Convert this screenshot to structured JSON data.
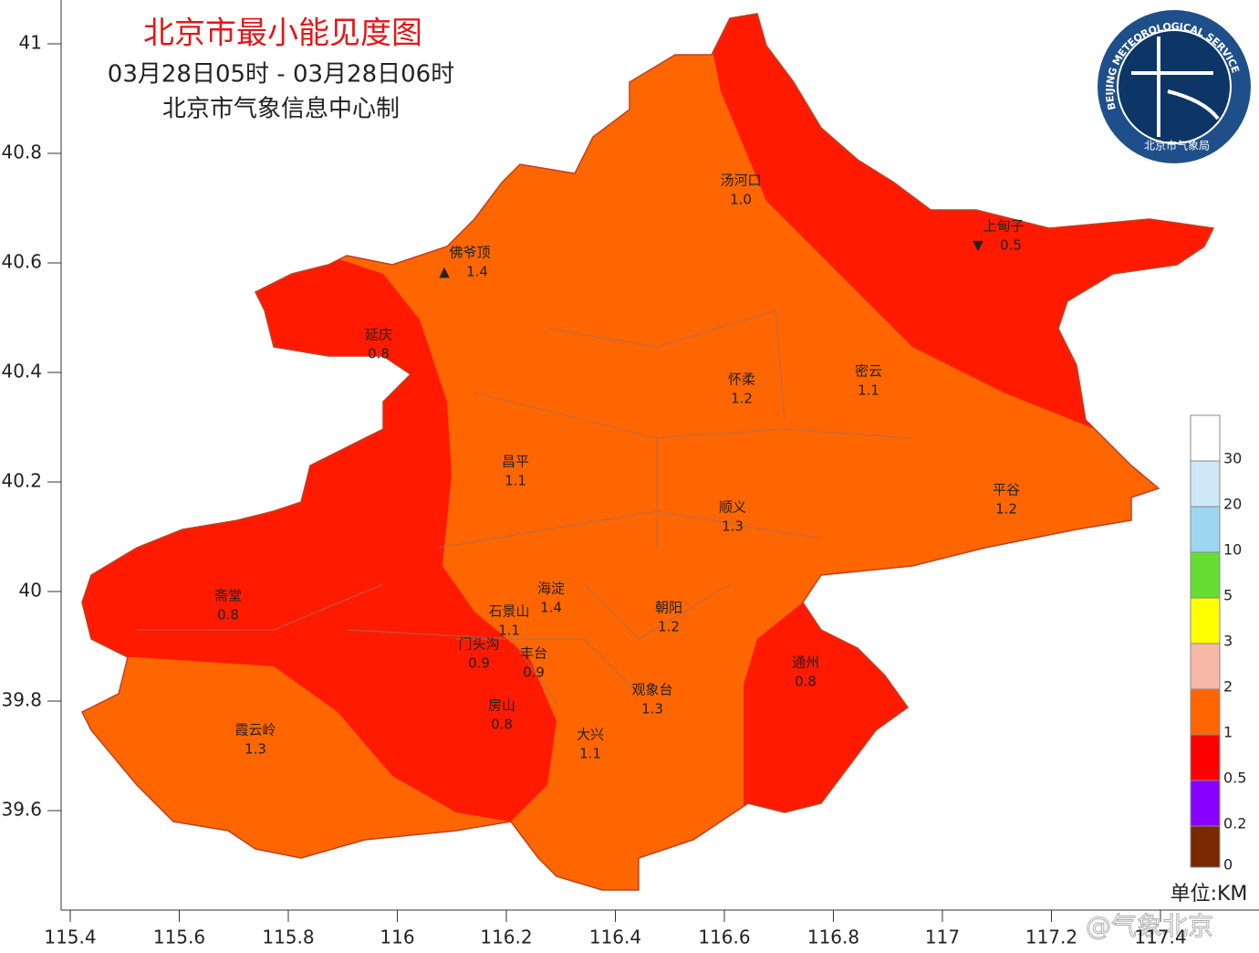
{
  "header": {
    "title": "北京市最小能见度图",
    "time_range": "03月28日05时 - 03月28日06时",
    "producer": "北京市气象信息中心制"
  },
  "axes": {
    "lat_ticks": [
      41,
      40.8,
      40.6,
      40.4,
      40.2,
      40,
      39.8,
      39.6
    ],
    "lon_ticks": [
      115.4,
      115.6,
      115.8,
      116,
      116.2,
      116.4,
      116.6,
      116.8,
      117,
      117.2,
      117.4
    ]
  },
  "stations": [
    {
      "name": "汤河口",
      "value": "1.0"
    },
    {
      "name": "上甸子",
      "value": "0.5",
      "marker": "▼"
    },
    {
      "name": "佛爷顶",
      "value": "1.4",
      "marker": "▲"
    },
    {
      "name": "延庆",
      "value": "0.8"
    },
    {
      "name": "怀柔",
      "value": "1.2"
    },
    {
      "name": "密云",
      "value": "1.1"
    },
    {
      "name": "昌平",
      "value": "1.1"
    },
    {
      "name": "顺义",
      "value": "1.3"
    },
    {
      "name": "平谷",
      "value": "1.2"
    },
    {
      "name": "斋堂",
      "value": "0.8"
    },
    {
      "name": "海淀",
      "value": "1.4"
    },
    {
      "name": "石景山",
      "value": "1.1"
    },
    {
      "name": "朝阳",
      "value": "1.2"
    },
    {
      "name": "门头沟",
      "value": "0.9"
    },
    {
      "name": "丰台",
      "value": "0.9"
    },
    {
      "name": "通州",
      "value": "0.8"
    },
    {
      "name": "观象台",
      "value": "1.3"
    },
    {
      "name": "房山",
      "value": "0.8"
    },
    {
      "name": "霞云岭",
      "value": "1.3"
    },
    {
      "name": "大兴",
      "value": "1.1"
    }
  ],
  "legend": {
    "items": [
      {
        "label": "30",
        "color": "#ffffff"
      },
      {
        "label": "20",
        "color": "#cfe8f8"
      },
      {
        "label": "10",
        "color": "#9dd6f0"
      },
      {
        "label": "5",
        "color": "#66dd33"
      },
      {
        "label": "3",
        "color": "#ffff00"
      },
      {
        "label": "2",
        "color": "#f8b8a8"
      },
      {
        "label": "1",
        "color": "#ff6600"
      },
      {
        "label": "0.5",
        "color": "#ff0000"
      },
      {
        "label": "0.2",
        "color": "#8800ff"
      },
      {
        "label": "0",
        "color": "#7a2a00"
      }
    ],
    "unit": "单位:KM"
  },
  "logo": {
    "ring_text": "BEIJING METEOROLOGICAL SERVICE",
    "bottom_text": "北京市气象局"
  },
  "watermark": "@气象北京"
}
